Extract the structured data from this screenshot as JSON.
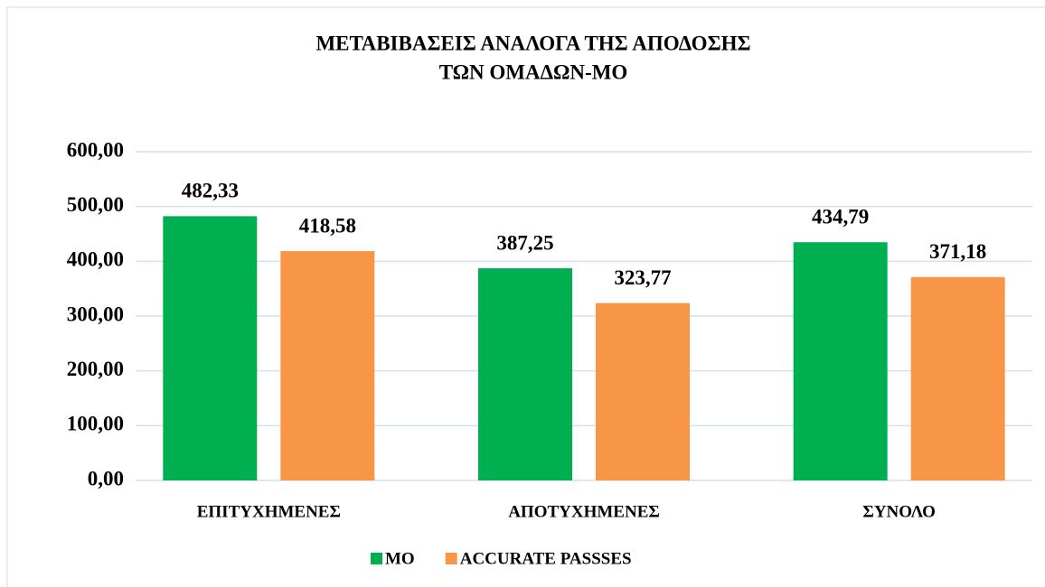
{
  "chart_data": {
    "type": "bar",
    "title": [
      "ΜΕΤΑΒΙΒΑΣΕΙΣ ΑΝΑΛΟΓΑ ΤΗΣ ΑΠΟΔΟΣΗΣ",
      "ΤΩΝ ΟΜΑΔΩΝ-ΜΟ"
    ],
    "categories": [
      "ΕΠΙΤΥΧΗΜΕΝΕΣ",
      "ΑΠΟΤΥΧΗΜΕΝΕΣ",
      "ΣΥΝΟΛΟ"
    ],
    "series": [
      {
        "name": "ΜΟ",
        "color": "#00b050",
        "values": [
          482.33,
          387.25,
          434.79
        ],
        "value_labels": [
          "482,33",
          "387,25",
          "434,79"
        ]
      },
      {
        "name": "ACCURATE PASSSES",
        "color": "#f79646",
        "values": [
          418.58,
          323.77,
          371.18
        ],
        "value_labels": [
          "418,58",
          "323,77",
          "371,18"
        ]
      }
    ],
    "ylim": [
      0,
      600
    ],
    "yticks": [
      {
        "value": 0,
        "label": "0,00"
      },
      {
        "value": 100,
        "label": "100,00"
      },
      {
        "value": 200,
        "label": "200,00"
      },
      {
        "value": 300,
        "label": "300,00"
      },
      {
        "value": 400,
        "label": "400,00"
      },
      {
        "value": 500,
        "label": "500,00"
      },
      {
        "value": 600,
        "label": "600,00"
      }
    ],
    "grid": true,
    "legend": "bottom"
  }
}
